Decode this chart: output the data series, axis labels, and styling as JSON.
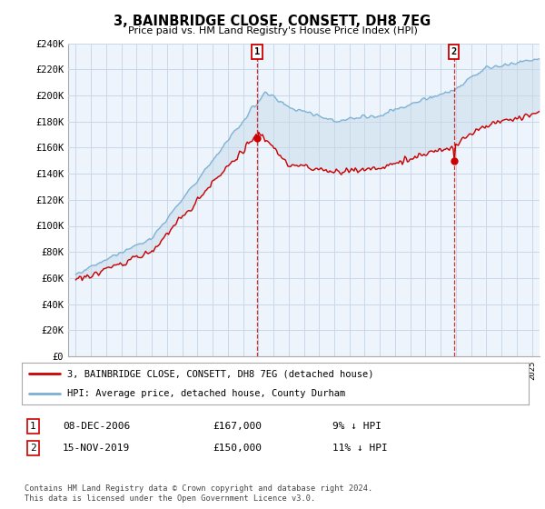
{
  "title": "3, BAINBRIDGE CLOSE, CONSETT, DH8 7EG",
  "subtitle": "Price paid vs. HM Land Registry's House Price Index (HPI)",
  "ylabel_ticks": [
    "£0",
    "£20K",
    "£40K",
    "£60K",
    "£80K",
    "£100K",
    "£120K",
    "£140K",
    "£160K",
    "£180K",
    "£200K",
    "£220K",
    "£240K"
  ],
  "ylim": [
    0,
    240000
  ],
  "xlim_start": 1994.5,
  "xlim_end": 2025.5,
  "legend_label_red": "3, BAINBRIDGE CLOSE, CONSETT, DH8 7EG (detached house)",
  "legend_label_blue": "HPI: Average price, detached house, County Durham",
  "annotation1_date": "08-DEC-2006",
  "annotation1_price": "£167,000",
  "annotation1_pct": "9% ↓ HPI",
  "annotation1_year": 2006.92,
  "annotation1_value": 167000,
  "annotation2_date": "15-NOV-2019",
  "annotation2_price": "£150,000",
  "annotation2_pct": "11% ↓ HPI",
  "annotation2_year": 2019.87,
  "annotation2_value": 150000,
  "footer": "Contains HM Land Registry data © Crown copyright and database right 2024.\nThis data is licensed under the Open Government Licence v3.0.",
  "color_red": "#cc0000",
  "color_blue": "#7bafd4",
  "fill_alpha": 0.18,
  "background_color": "#ffffff",
  "plot_bg_color": "#eef4fb",
  "grid_color": "#c8d8e8"
}
